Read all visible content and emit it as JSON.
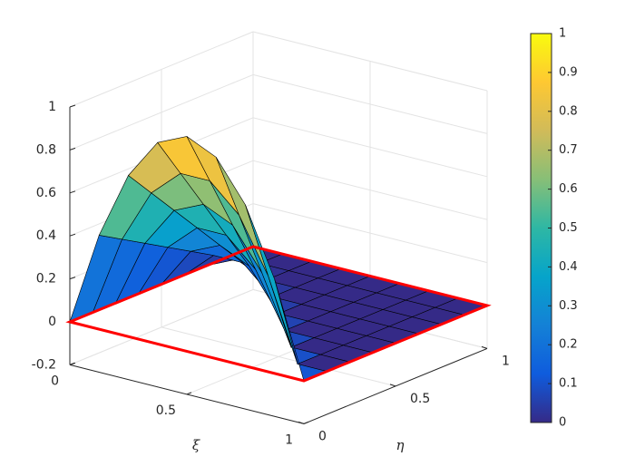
{
  "chart_data": {
    "type": "surface",
    "xlabel": "ξ",
    "ylabel": "η",
    "x": [
      0,
      0.125,
      0.25,
      0.375,
      0.5,
      0.625,
      0.75,
      0.875,
      1
    ],
    "y": [
      0,
      0.125,
      0.25,
      0.375,
      0.5,
      0.625,
      0.75,
      0.875,
      1
    ],
    "z": [
      [
        0,
        0.4375,
        0.75,
        0.9375,
        1,
        0.9375,
        0.75,
        0.4375,
        0
      ],
      [
        0,
        0.375,
        0.625,
        0.75,
        0.75,
        0.625,
        0.375,
        0,
        0
      ],
      [
        0,
        0.3125,
        0.5,
        0.5625,
        0.5,
        0.3125,
        0,
        0,
        0
      ],
      [
        0,
        0.25,
        0.375,
        0.375,
        0.25,
        0,
        0,
        0,
        0
      ],
      [
        0,
        0.1875,
        0.25,
        0.1875,
        0,
        0,
        0,
        0,
        0
      ],
      [
        0,
        0.125,
        0.125,
        0,
        0,
        0,
        0,
        0,
        0
      ],
      [
        0,
        0.0625,
        0,
        0,
        0,
        0,
        0,
        0,
        0
      ],
      [
        0,
        0,
        0,
        0,
        0,
        0,
        0,
        0,
        0
      ],
      [
        0,
        0,
        0,
        0,
        0,
        0,
        0,
        0,
        0
      ]
    ],
    "xlim": [
      0,
      1
    ],
    "ylim": [
      0,
      1
    ],
    "zlim": [
      -0.2,
      1
    ],
    "xticks": [
      0,
      0.5,
      1
    ],
    "yticks": [
      0,
      0.5,
      1
    ],
    "zticks": [
      -0.2,
      0,
      0.2,
      0.4,
      0.6,
      0.8,
      1
    ],
    "grid": true,
    "edge_color": "#000000",
    "outline_color": "#ff0000",
    "colormap": [
      "#352a87",
      "#0f5cdd",
      "#1481d6",
      "#06a4ca",
      "#2eb7a4",
      "#87bf77",
      "#d1bb59",
      "#fec832",
      "#f9fb0e"
    ],
    "clim": [
      0,
      1
    ],
    "colorbar_ticks": [
      0,
      0.1,
      0.2,
      0.3,
      0.4,
      0.5,
      0.6,
      0.7,
      0.8,
      0.9,
      1
    ]
  }
}
